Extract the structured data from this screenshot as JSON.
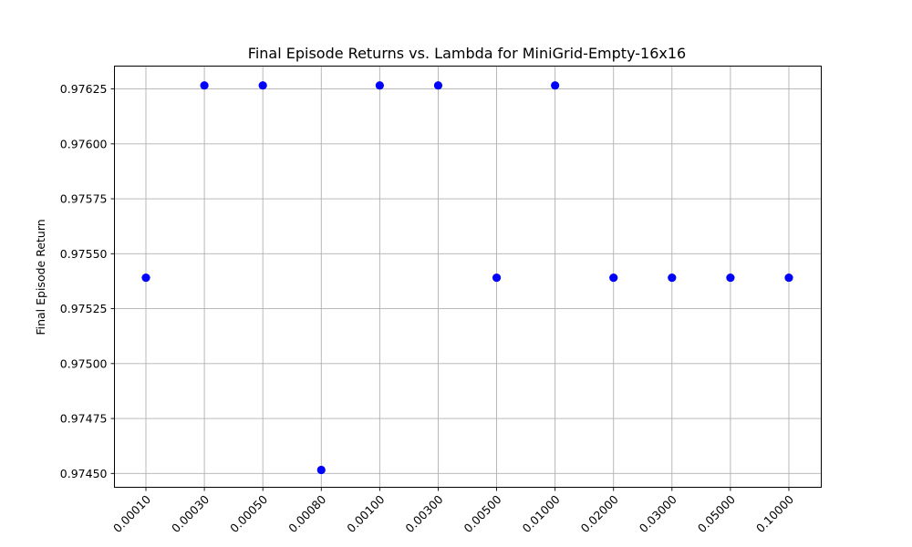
{
  "chart_data": {
    "type": "scatter",
    "title": "Final Episode Returns vs. Lambda for MiniGrid-Empty-16x16",
    "xlabel": "",
    "ylabel": "Final Episode Return",
    "categories": [
      "0.00010",
      "0.00030",
      "0.00050",
      "0.00080",
      "0.00100",
      "0.00300",
      "0.00500",
      "0.01000",
      "0.02000",
      "0.03000",
      "0.05000",
      "0.10000"
    ],
    "values": [
      0.975391,
      0.976266,
      0.976266,
      0.974516,
      0.976266,
      0.976266,
      0.975391,
      0.976266,
      0.975391,
      0.975391,
      0.975391,
      0.975391
    ],
    "yticks": [
      "0.97450",
      "0.97475",
      "0.97500",
      "0.97525",
      "0.97550",
      "0.97575",
      "0.97600",
      "0.97625"
    ],
    "ylim": [
      0.974437,
      0.976354
    ],
    "grid": true,
    "marker_color": "#0000ff"
  }
}
